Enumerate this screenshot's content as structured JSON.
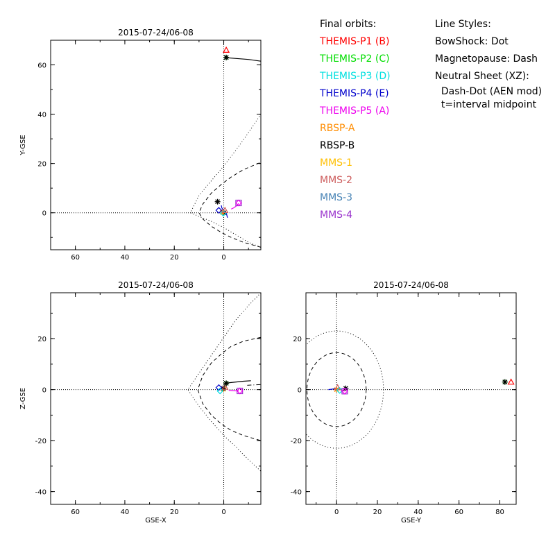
{
  "legend": {
    "orbits_title": "Final orbits:",
    "items": [
      {
        "label": "THEMIS-P1 (B)",
        "color": "#ff0000"
      },
      {
        "label": "THEMIS-P2 (C)",
        "color": "#00dd00"
      },
      {
        "label": "THEMIS-P3 (D)",
        "color": "#00e0e0"
      },
      {
        "label": "THEMIS-P4 (E)",
        "color": "#0000cc"
      },
      {
        "label": "THEMIS-P5 (A)",
        "color": "#ee00ee"
      },
      {
        "label": "RBSP-A",
        "color": "#ff8c00"
      },
      {
        "label": "RBSP-B",
        "color": "#000000"
      },
      {
        "label": "MMS-1",
        "color": "#ffbf00"
      },
      {
        "label": "MMS-2",
        "color": "#cd5c5c"
      },
      {
        "label": "MMS-3",
        "color": "#4682b4"
      },
      {
        "label": "MMS-4",
        "color": "#9932cc"
      }
    ],
    "styles_title": "Line Styles:",
    "styles": [
      "BowShock: Dot",
      "Magnetopause: Dash",
      "Neutral Sheet (XZ):",
      "  Dash-Dot (AEN mod)",
      "  t=interval midpoint"
    ]
  },
  "chart_data": [
    {
      "type": "scatter",
      "title": "2015-07-24/06-08",
      "xlabel": "",
      "ylabel": "Y-GSE",
      "xlim": [
        70,
        -15
      ],
      "ylim": [
        -15,
        70
      ],
      "xticks": [
        60,
        40,
        20,
        0
      ],
      "yticks": [
        0,
        20,
        40,
        60
      ],
      "guides": {
        "vline": 0,
        "hline": 0
      },
      "bowshock": {
        "x": [
          -15,
          -10,
          -5,
          0,
          5,
          10,
          13.5,
          10,
          5,
          0,
          -5,
          -10,
          -15
        ],
        "y": [
          -14,
          -12,
          -9,
          -6,
          -3.5,
          -1.5,
          0,
          7,
          13,
          19,
          25.5,
          32.5,
          40
        ]
      },
      "magnetopause": {
        "x": [
          -15,
          -8,
          -3,
          1,
          5,
          8.5,
          10,
          8.5,
          5,
          1,
          -3,
          -8,
          -15
        ],
        "y": [
          -14,
          -12,
          -10,
          -8,
          -5.5,
          -2.5,
          0,
          3.5,
          8,
          11.5,
          14.5,
          17.5,
          20.5
        ]
      },
      "tracks": [
        {
          "color": "#0000cc",
          "x": [
            -1.5,
            -1,
            0,
            0.8,
            1
          ],
          "y": [
            -2,
            0,
            1,
            2,
            3
          ]
        },
        {
          "color": "#ee00ee",
          "x": [
            -3,
            -4,
            -5.5,
            -6
          ],
          "y": [
            1.5,
            2,
            3,
            3.8
          ]
        },
        {
          "color": "#000000",
          "x": [
            0,
            -5,
            -10,
            -15
          ],
          "y": [
            63,
            62.6,
            62.2,
            61.5
          ]
        }
      ],
      "markers": [
        {
          "x": 0,
          "y": 0,
          "symbol": "asterisk",
          "color": "#000000"
        },
        {
          "x": 0.6,
          "y": 0.2,
          "symbol": "asterisk",
          "color": "#ff8c00"
        },
        {
          "x": 0.2,
          "y": -0.2,
          "symbol": "diamond",
          "color": "#00e0e0"
        },
        {
          "x": 2,
          "y": 1,
          "symbol": "diamond",
          "color": "#0000cc"
        },
        {
          "x": -6,
          "y": 4,
          "symbol": "square",
          "color": "#9932cc"
        },
        {
          "x": -6,
          "y": 4,
          "symbol": "diamond",
          "color": "#ee00ee"
        },
        {
          "x": -0.5,
          "y": 1,
          "symbol": "triangle",
          "color": "#cd5c5c"
        },
        {
          "x": 2.5,
          "y": 4.5,
          "symbol": "asterisk",
          "color": "#000000"
        },
        {
          "x": -1,
          "y": 63,
          "symbol": "asterisk",
          "color": "#00dd00"
        },
        {
          "x": -1,
          "y": 63,
          "symbol": "asterisk",
          "color": "#000000"
        },
        {
          "x": -1,
          "y": 66,
          "symbol": "triangle",
          "color": "#ff0000"
        }
      ]
    },
    {
      "type": "scatter",
      "title": "2015-07-24/06-08",
      "xlabel": "GSE-X",
      "ylabel": "Z-GSE",
      "xlim": [
        70,
        -15
      ],
      "ylim": [
        -45,
        38
      ],
      "xticks": [
        60,
        40,
        20,
        0
      ],
      "yticks": [
        -40,
        -20,
        0,
        20
      ],
      "guides": {
        "vline": 0,
        "hline": 0
      },
      "bowshock": {
        "x": [
          -15,
          -10,
          -5,
          0,
          5,
          10,
          14.5,
          10,
          5,
          0,
          -5,
          -10,
          -15
        ],
        "y": [
          38,
          33,
          27.5,
          20.5,
          13.5,
          6.5,
          0,
          -6.5,
          -12.5,
          -18,
          -22.5,
          -27.5,
          -32
        ]
      },
      "magnetopause": {
        "x": [
          -15,
          -8,
          -3,
          1,
          5,
          8.5,
          10.5,
          8.5,
          5,
          1,
          -3,
          -8,
          -15
        ],
        "y": [
          20.5,
          19,
          17,
          14,
          10.5,
          5.5,
          0,
          -5.5,
          -10,
          -13.5,
          -16,
          -18,
          -20
        ]
      },
      "neutral_sheet": {
        "x": [
          -9.5,
          -11,
          -13,
          -15
        ],
        "y": [
          1.7,
          1.8,
          1.9,
          2
        ]
      },
      "tracks": [
        {
          "color": "#000000",
          "x": [
            -1,
            -5,
            -8,
            -11
          ],
          "y": [
            2.6,
            3,
            3.3,
            3.5
          ]
        },
        {
          "color": "#ee00ee",
          "x": [
            -2,
            -4,
            -6
          ],
          "y": [
            -0.3,
            -0.4,
            -0.5
          ]
        }
      ],
      "markers": [
        {
          "x": 0,
          "y": 0.2,
          "symbol": "asterisk",
          "color": "#ff8c00"
        },
        {
          "x": 0.3,
          "y": 0.5,
          "symbol": "asterisk",
          "color": "#000000"
        },
        {
          "x": 2,
          "y": 0.8,
          "symbol": "diamond",
          "color": "#0000cc"
        },
        {
          "x": -0.5,
          "y": 1,
          "symbol": "triangle",
          "color": "#cd5c5c"
        },
        {
          "x": 1.5,
          "y": -0.5,
          "symbol": "diamond",
          "color": "#00e0e0"
        },
        {
          "x": -1,
          "y": 2.5,
          "symbol": "asterisk",
          "color": "#00dd00"
        },
        {
          "x": -1,
          "y": 2.5,
          "symbol": "asterisk",
          "color": "#000000"
        },
        {
          "x": -6.5,
          "y": -0.5,
          "symbol": "square",
          "color": "#9932cc"
        },
        {
          "x": -6.5,
          "y": -0.5,
          "symbol": "diamond",
          "color": "#ee00ee"
        }
      ]
    },
    {
      "type": "scatter",
      "title": "2015-07-24/06-08",
      "xlabel": "GSE-Y",
      "ylabel": "",
      "xlim": [
        -15,
        88
      ],
      "ylim": [
        -45,
        38
      ],
      "xticks": [
        0,
        20,
        40,
        60,
        80
      ],
      "yticks": [
        -40,
        -20,
        0,
        20
      ],
      "guides": {
        "vline": 0,
        "hline": 0
      },
      "circles": [
        {
          "r": 23,
          "style": "dot"
        },
        {
          "r": 14.5,
          "style": "dash"
        }
      ],
      "tracks": [
        {
          "color": "#0000cc",
          "x": [
            -4,
            -2,
            0,
            1
          ],
          "y": [
            0,
            0.2,
            0.5,
            0.6
          ]
        },
        {
          "color": "#ee00ee",
          "x": [
            1,
            2.5,
            4
          ],
          "y": [
            0.5,
            -0.3,
            -0.6
          ]
        }
      ],
      "markers": [
        {
          "x": 0,
          "y": 0,
          "symbol": "asterisk",
          "color": "#ff8c00"
        },
        {
          "x": 0.5,
          "y": 0.8,
          "symbol": "triangle",
          "color": "#cd5c5c"
        },
        {
          "x": 4.5,
          "y": 0.5,
          "symbol": "asterisk",
          "color": "#000000"
        },
        {
          "x": 1.5,
          "y": -0.3,
          "symbol": "diamond",
          "color": "#00e0e0"
        },
        {
          "x": 4,
          "y": -0.6,
          "symbol": "square",
          "color": "#9932cc"
        },
        {
          "x": 4,
          "y": -0.6,
          "symbol": "diamond",
          "color": "#ee00ee"
        },
        {
          "x": 82.5,
          "y": 3,
          "symbol": "asterisk",
          "color": "#00dd00"
        },
        {
          "x": 82.5,
          "y": 3,
          "symbol": "asterisk",
          "color": "#000000"
        },
        {
          "x": 85.5,
          "y": 3,
          "symbol": "triangle",
          "color": "#ff0000"
        }
      ]
    }
  ]
}
